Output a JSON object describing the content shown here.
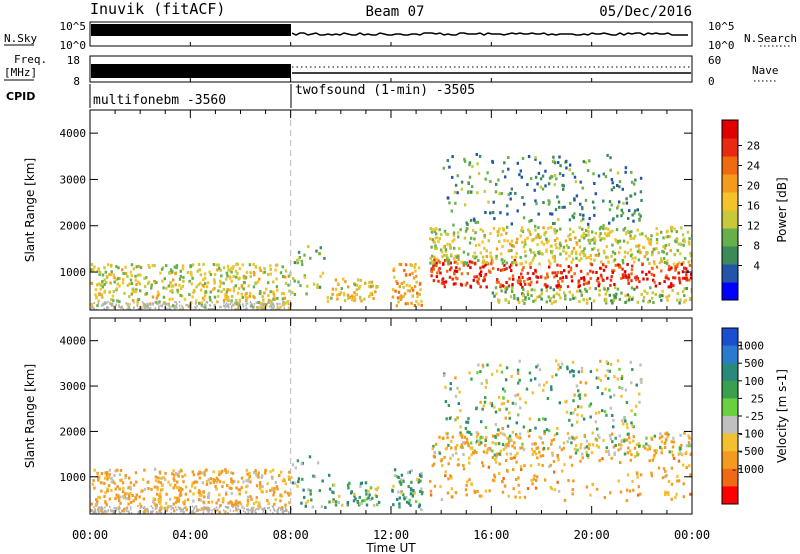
{
  "header": {
    "station": "Inuvik (fitACF)",
    "beam": "Beam 07",
    "date": "05/Dec/2016"
  },
  "summary_panels": {
    "nsky_label": "N.Sky",
    "nsky_ticks": [
      "10^5",
      "10^0"
    ],
    "nsearch_label": "N.Search",
    "nsearch_ticks": [
      "10^5",
      "10^0"
    ],
    "freq_label_line1": "Freq.",
    "freq_label_line2": "[MHz]",
    "freq_ticks": [
      "18",
      "8"
    ],
    "nave_label": "Nave",
    "nave_ticks": [
      "60",
      "0"
    ],
    "cpid_label": "CPID",
    "cpid_segments": [
      {
        "name": "multifonebm",
        "id": "-3560",
        "start": "00:00",
        "end": "08:00"
      },
      {
        "name": "twofsound (1-min)",
        "id": "-3505",
        "start": "08:00",
        "end": "24:00"
      }
    ]
  },
  "chart_data": [
    {
      "type": "heatmap",
      "title": "",
      "xlabel": "Time UT",
      "ylabel": "Slant Range [km]",
      "x_ticks": [
        "00:00",
        "04:00",
        "08:00",
        "12:00",
        "16:00",
        "20:00",
        "00:00"
      ],
      "y_ticks": [
        "1000",
        "2000",
        "3000",
        "4000"
      ],
      "xlim_hours": [
        0,
        24
      ],
      "ylim_km": [
        180,
        4500
      ],
      "colorbar": {
        "label": "Power [dB]",
        "ticks": [
          "4",
          "8",
          "12",
          "16",
          "20",
          "24",
          "28"
        ],
        "range": [
          0,
          30
        ],
        "colors": [
          "#0000ff",
          "#2255a8",
          "#3a8a5a",
          "#66b04a",
          "#c8c83a",
          "#f5c22a",
          "#f59a1a",
          "#f06a10",
          "#e82a10",
          "#e00000"
        ]
      },
      "regions": [
        {
          "t0": 0.0,
          "t1": 8.0,
          "r0": 250,
          "r1": 1200,
          "level": 14
        },
        {
          "t0": 8.0,
          "t1": 9.5,
          "r0": 350,
          "r1": 1600,
          "level": 12
        },
        {
          "t0": 9.5,
          "t1": 11.5,
          "r0": 400,
          "r1": 900,
          "level": 16
        },
        {
          "t0": 12.0,
          "t1": 13.2,
          "r0": 300,
          "r1": 1200,
          "level": 18
        },
        {
          "t0": 13.5,
          "t1": 17.0,
          "r0": 700,
          "r1": 1300,
          "level": 26
        },
        {
          "t0": 13.5,
          "t1": 24.0,
          "r0": 1200,
          "r1": 2000,
          "level": 14
        },
        {
          "t0": 17.0,
          "t1": 24.0,
          "r0": 700,
          "r1": 1200,
          "level": 26
        },
        {
          "t0": 16.0,
          "t1": 24.0,
          "r0": 350,
          "r1": 700,
          "level": 12
        },
        {
          "t0": 14.0,
          "t1": 22.0,
          "r0": 2000,
          "r1": 3600,
          "level": 8
        }
      ]
    },
    {
      "type": "heatmap",
      "title": "",
      "xlabel": "Time UT",
      "ylabel": "Slant Range [km]",
      "x_ticks": [
        "00:00",
        "04:00",
        "08:00",
        "12:00",
        "16:00",
        "20:00",
        "00:00"
      ],
      "y_ticks": [
        "1000",
        "2000",
        "3000",
        "4000"
      ],
      "xlim_hours": [
        0,
        24
      ],
      "ylim_km": [
        180,
        4500
      ],
      "colorbar": {
        "label": "Velocity [m s-1]",
        "ticks": [
          "1000",
          "500",
          "100",
          "25",
          "-25",
          "-100",
          "-500",
          "-1000"
        ],
        "colors": [
          "#1a4fd0",
          "#2a7ad0",
          "#2a8a7a",
          "#3aa050",
          "#6ad040",
          "#c0c0c0",
          "#f5c030",
          "#f59a20",
          "#f06a15",
          "#ff0000"
        ]
      },
      "regions": [
        {
          "t0": 0.0,
          "t1": 8.0,
          "r0": 250,
          "r1": 1200,
          "level": -120
        },
        {
          "t0": 8.0,
          "t1": 9.5,
          "r0": 350,
          "r1": 1500,
          "level": 80
        },
        {
          "t0": 9.5,
          "t1": 11.5,
          "r0": 400,
          "r1": 900,
          "level": 60
        },
        {
          "t0": 12.0,
          "t1": 13.2,
          "r0": 300,
          "r1": 1200,
          "level": 90
        },
        {
          "t0": 13.5,
          "t1": 24.0,
          "r0": 500,
          "r1": 1500,
          "level": -150
        },
        {
          "t0": 13.5,
          "t1": 24.0,
          "r0": 1500,
          "r1": 2000,
          "level": -60
        },
        {
          "t0": 14.0,
          "t1": 22.0,
          "r0": 2000,
          "r1": 3600,
          "level": 20
        }
      ]
    }
  ]
}
